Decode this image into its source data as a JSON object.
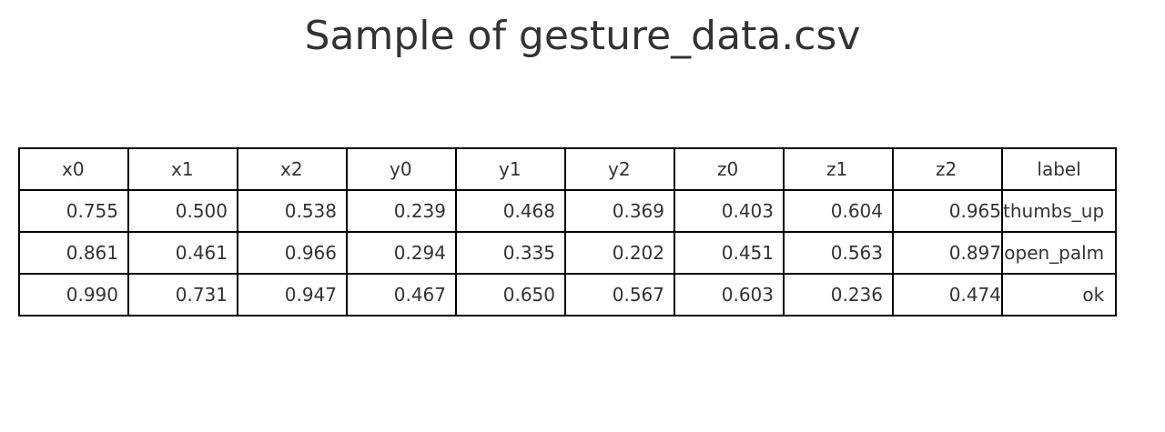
{
  "chart_data": {
    "type": "table",
    "title": "Sample of gesture_data.csv",
    "columns": [
      "x0",
      "x1",
      "x2",
      "y0",
      "y1",
      "y2",
      "z0",
      "z1",
      "z2",
      "label"
    ],
    "rows": [
      [
        "0.755",
        "0.500",
        "0.538",
        "0.239",
        "0.468",
        "0.369",
        "0.403",
        "0.604",
        "0.965",
        "thumbs_up"
      ],
      [
        "0.861",
        "0.461",
        "0.966",
        "0.294",
        "0.335",
        "0.202",
        "0.451",
        "0.563",
        "0.897",
        "open_palm"
      ],
      [
        "0.990",
        "0.731",
        "0.947",
        "0.467",
        "0.650",
        "0.567",
        "0.603",
        "0.236",
        "0.474",
        "ok"
      ]
    ]
  },
  "colors": {
    "text": "#333333",
    "border": "#000000",
    "background": "#ffffff"
  }
}
